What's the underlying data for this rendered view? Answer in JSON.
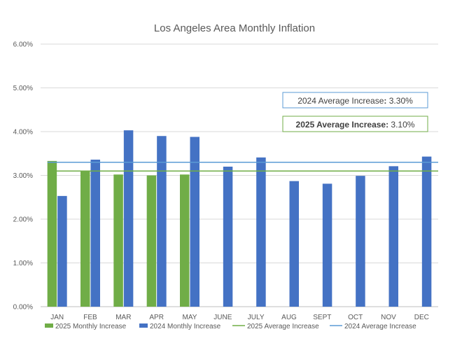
{
  "chart_data": {
    "type": "bar",
    "title": "Los Angeles Area Monthly Inflation",
    "categories": [
      "JAN",
      "FEB",
      "MAR",
      "APR",
      "MAY",
      "JUNE",
      "JULY",
      "AUG",
      "SEPT",
      "OCT",
      "NOV",
      "DEC"
    ],
    "y_ticks": [
      "0.00%",
      "1.00%",
      "2.00%",
      "3.00%",
      "4.00%",
      "5.00%",
      "6.00%"
    ],
    "ylim": [
      0,
      6
    ],
    "grid": true,
    "legend_position": "bottom",
    "series": [
      {
        "name": "2025 Monthly Increase",
        "type": "bar",
        "color": "#70ad47",
        "values": [
          3.33,
          3.1,
          3.02,
          3.0,
          3.02,
          null,
          null,
          null,
          null,
          null,
          null,
          null
        ]
      },
      {
        "name": "2024 Monthly Increase",
        "type": "bar",
        "color": "#4472c4",
        "values": [
          2.53,
          3.36,
          4.03,
          3.9,
          3.88,
          3.2,
          3.41,
          2.87,
          2.81,
          2.99,
          3.21,
          3.43
        ]
      },
      {
        "name": "2025 Average Increase",
        "type": "line",
        "color": "#70ad47",
        "value": 3.1
      },
      {
        "name": "2024 Average Increase",
        "type": "line",
        "color": "#5b9bd5",
        "value": 3.3
      }
    ],
    "annotations": [
      {
        "id": "avg2024",
        "label": "2024 Average Increase",
        "separator": ":",
        "value": " 3.30%",
        "border_color": "#5b9bd5",
        "bold": false
      },
      {
        "id": "avg2025",
        "label": "2025 Average Increase",
        "separator": ":",
        "value": " 3.10%",
        "border_color": "#70ad47",
        "bold": true
      }
    ]
  }
}
